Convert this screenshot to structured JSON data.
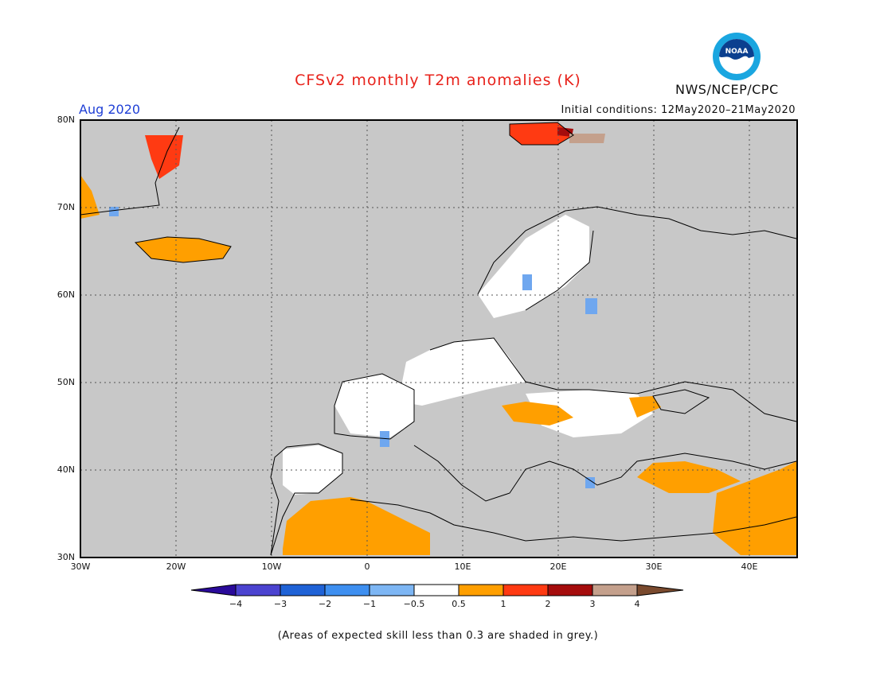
{
  "header": {
    "title": "CFSv2 monthly T2m anomalies (K)",
    "month": "Aug 2020",
    "initial_conditions": "Initial conditions: 12May2020–21May2020",
    "agency": "NWS/NCEP/CPC",
    "logo_text": "NOAA"
  },
  "map": {
    "lon_range": [
      -30,
      45
    ],
    "lat_range": [
      30,
      80
    ],
    "lat_labels": [
      "80N",
      "70N",
      "60N",
      "50N",
      "40N",
      "30N"
    ],
    "lon_labels": [
      "30W",
      "20W",
      "10W",
      "0",
      "10E",
      "20E",
      "30E",
      "40E"
    ],
    "colors": {
      "grey": "#c8c8c8",
      "land_outline": "#000000",
      "neutral": "#ffffff",
      "warm_1": "#ff9f00",
      "warm_2": "#ff3a12",
      "warm_3": "#a50c0c",
      "warm_4": "#c4a08c",
      "cool_1": "#6fa7ef"
    }
  },
  "colorbar": {
    "labels": [
      "−4",
      "−3",
      "−2",
      "−1",
      "−0.5",
      "0.5",
      "1",
      "2",
      "3",
      "4"
    ],
    "colors": [
      "#2a0a9a",
      "#4b43d0",
      "#1f62d6",
      "#3e8ff0",
      "#7db6f4",
      "#ffffff",
      "#ff9f00",
      "#ff3a12",
      "#a50c0c",
      "#c4a08c",
      "#7a4a2e"
    ]
  },
  "footnote": "(Areas of expected skill less than 0.3 are shaded in grey.)"
}
